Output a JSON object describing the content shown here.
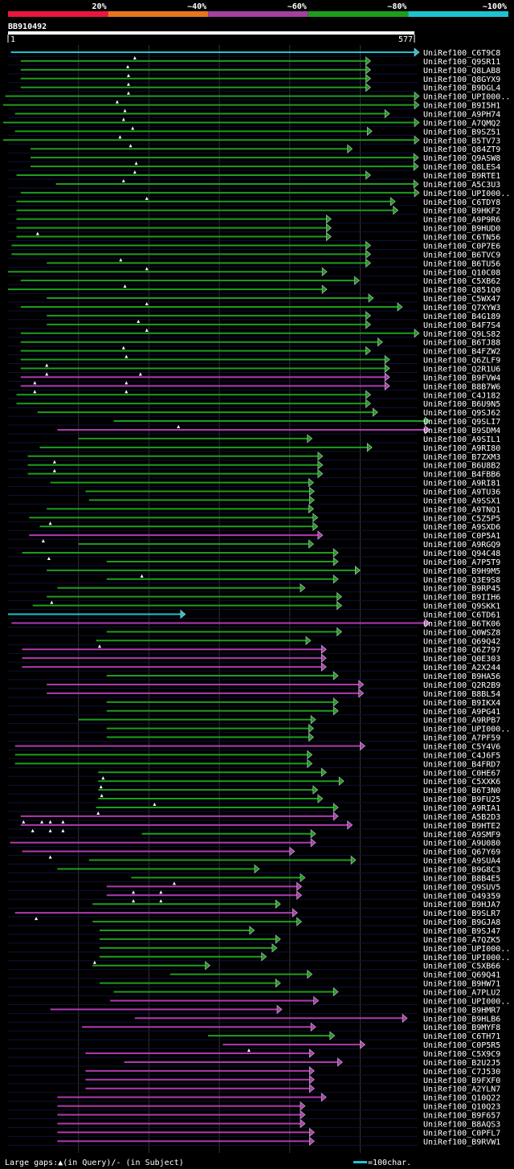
{
  "colors": {
    "bg": "#000000",
    "red": "#e8173c",
    "orange": "#e8741e",
    "purple": "#a340a0",
    "green": "#1d9e1d",
    "cyan": "#1ec3d0",
    "magenta": "#b03ab0",
    "guide": "#333333",
    "row_guide": "#10103a",
    "query": "#ffffff"
  },
  "chart_data": {
    "type": "alignment-overview",
    "title": "BB910492",
    "query_length": 577,
    "axis": {
      "start_label": "1",
      "end_label": "577"
    },
    "identity_legend": [
      {
        "label": "20%",
        "color": "#e8173c"
      },
      {
        "label": "~40%",
        "color": "#e8741e"
      },
      {
        "label": "~60%",
        "color": "#a340a0"
      },
      {
        "label": "~80%",
        "color": "#1d9e1d"
      },
      {
        "label": "~100%",
        "color": "#1ec3d0"
      }
    ],
    "footer": {
      "gap_legend": "Large gaps:▲(in Query)/- (in Subject)",
      "scale_legend": "=100char."
    },
    "hits": [
      {
        "name": "UniRef100_C6T9C8",
        "s": 4,
        "e": 577,
        "c": "cyan",
        "t": [
          180
        ]
      },
      {
        "name": "UniRef100_Q9SR11",
        "s": 18,
        "e": 508,
        "c": "green",
        "t": [
          170
        ]
      },
      {
        "name": "UniRef100_Q8LAB8",
        "s": 18,
        "e": 508,
        "c": "green",
        "t": [
          171
        ]
      },
      {
        "name": "UniRef100_Q8GYX9",
        "s": 18,
        "e": 508,
        "c": "green",
        "t": [
          171
        ]
      },
      {
        "name": "UniRef100_B9DGL4",
        "s": 18,
        "e": 508,
        "c": "green",
        "t": [
          171
        ]
      },
      {
        "name": "UniRef100_UPI000..",
        "s": -4,
        "e": 577,
        "c": "green",
        "t": [
          155
        ]
      },
      {
        "name": "UniRef100_B9I5H1",
        "s": -7,
        "e": 577,
        "c": "green",
        "t": [
          166
        ]
      },
      {
        "name": "UniRef100_A9PH74",
        "s": 10,
        "e": 535,
        "c": "green",
        "t": [
          164
        ]
      },
      {
        "name": "UniRef100_A7QMQ2",
        "s": -7,
        "e": 577,
        "c": "green",
        "t": [
          177
        ]
      },
      {
        "name": "UniRef100_B9SZ51",
        "s": 10,
        "e": 510,
        "c": "green",
        "t": [
          159
        ]
      },
      {
        "name": "UniRef100_B5TV73",
        "s": -7,
        "e": 577,
        "c": "green",
        "t": [
          174
        ]
      },
      {
        "name": "UniRef100_Q84ZT9",
        "s": 32,
        "e": 482,
        "c": "green",
        "t": []
      },
      {
        "name": "UniRef100_Q9ASW8",
        "s": 32,
        "e": 576,
        "c": "green",
        "t": [
          182
        ]
      },
      {
        "name": "UniRef100_Q8LES4",
        "s": 32,
        "e": 576,
        "c": "green",
        "t": [
          180
        ]
      },
      {
        "name": "UniRef100_B9RTE1",
        "s": 12,
        "e": 508,
        "c": "green",
        "t": [
          164
        ]
      },
      {
        "name": "UniRef100_A5C3U3",
        "s": 68,
        "e": 576,
        "c": "green",
        "t": []
      },
      {
        "name": "UniRef100_UPI000..",
        "s": 18,
        "e": 577,
        "c": "green",
        "t": [
          197
        ]
      },
      {
        "name": "UniRef100_C6TDY8",
        "s": 12,
        "e": 543,
        "c": "green",
        "t": []
      },
      {
        "name": "UniRef100_B9HKF2",
        "s": 12,
        "e": 547,
        "c": "green",
        "t": []
      },
      {
        "name": "UniRef100_A9P9R6",
        "s": 12,
        "e": 452,
        "c": "green",
        "t": []
      },
      {
        "name": "UniRef100_B9HUD0",
        "s": 12,
        "e": 452,
        "c": "green",
        "t": [
          42
        ]
      },
      {
        "name": "UniRef100_C6TN56",
        "s": 12,
        "e": 452,
        "c": "green",
        "t": []
      },
      {
        "name": "UniRef100_C0P7E6",
        "s": 5,
        "e": 508,
        "c": "green",
        "t": []
      },
      {
        "name": "UniRef100_B6TVC9",
        "s": 5,
        "e": 508,
        "c": "green",
        "t": [
          160
        ]
      },
      {
        "name": "UniRef100_B6TU56",
        "s": 55,
        "e": 508,
        "c": "green",
        "t": [
          197
        ]
      },
      {
        "name": "UniRef100_Q10C08",
        "s": 0,
        "e": 446,
        "c": "green",
        "t": []
      },
      {
        "name": "UniRef100_C5XB62",
        "s": 18,
        "e": 492,
        "c": "green",
        "t": [
          166
        ]
      },
      {
        "name": "UniRef100_Q851Q0",
        "s": 0,
        "e": 446,
        "c": "green",
        "t": []
      },
      {
        "name": "UniRef100_C5WX47",
        "s": 55,
        "e": 512,
        "c": "green",
        "t": [
          197
        ]
      },
      {
        "name": "UniRef100_Q7XYW3",
        "s": 18,
        "e": 553,
        "c": "green",
        "t": []
      },
      {
        "name": "UniRef100_B4G189",
        "s": 55,
        "e": 508,
        "c": "green",
        "t": [
          185
        ]
      },
      {
        "name": "UniRef100_B4F7S4",
        "s": 55,
        "e": 508,
        "c": "green",
        "t": [
          197
        ]
      },
      {
        "name": "UniRef100_Q9LS82",
        "s": 18,
        "e": 577,
        "c": "green",
        "t": []
      },
      {
        "name": "UniRef100_B6TJ88",
        "s": 18,
        "e": 525,
        "c": "green",
        "t": [
          164
        ]
      },
      {
        "name": "UniRef100_B4FZW2",
        "s": 18,
        "e": 508,
        "c": "green",
        "t": [
          168
        ]
      },
      {
        "name": "UniRef100_Q6ZLF9",
        "s": 18,
        "e": 535,
        "c": "green",
        "t": [
          55
        ]
      },
      {
        "name": "UniRef100_Q2R1U6",
        "s": 18,
        "e": 535,
        "c": "green",
        "t": [
          55,
          188
        ]
      },
      {
        "name": "UniRef100_B9FVW4",
        "s": 18,
        "e": 535,
        "c": "magenta",
        "t": [
          38,
          168
        ]
      },
      {
        "name": "UniRef100_B8B7W6",
        "s": 18,
        "e": 535,
        "c": "magenta",
        "t": [
          38,
          168
        ]
      },
      {
        "name": "UniRef100_C4J182",
        "s": 12,
        "e": 508,
        "c": "green",
        "t": []
      },
      {
        "name": "UniRef100_B6U9N5",
        "s": 12,
        "e": 508,
        "c": "green",
        "t": []
      },
      {
        "name": "UniRef100_Q9SJ62",
        "s": 42,
        "e": 518,
        "c": "green",
        "t": []
      },
      {
        "name": "UniRef100_Q9SLI7",
        "s": 150,
        "e": 592,
        "c": "green",
        "t": [
          242
        ]
      },
      {
        "name": "UniRef100_B9SDM4",
        "s": 70,
        "e": 592,
        "c": "magenta",
        "t": []
      },
      {
        "name": "UniRef100_A9SIL1",
        "s": 100,
        "e": 425,
        "c": "green",
        "t": []
      },
      {
        "name": "UniRef100_A9RI80",
        "s": 45,
        "e": 510,
        "c": "green",
        "t": []
      },
      {
        "name": "UniRef100_B7ZXM3",
        "s": 28,
        "e": 440,
        "c": "green",
        "t": [
          66
        ]
      },
      {
        "name": "UniRef100_B6U8B2",
        "s": 28,
        "e": 440,
        "c": "green",
        "t": [
          66
        ]
      },
      {
        "name": "UniRef100_B4FBB6",
        "s": 28,
        "e": 440,
        "c": "green",
        "t": []
      },
      {
        "name": "UniRef100_A9RI81",
        "s": 60,
        "e": 427,
        "c": "green",
        "t": []
      },
      {
        "name": "UniRef100_A9TU36",
        "s": 110,
        "e": 428,
        "c": "green",
        "t": []
      },
      {
        "name": "UniRef100_A9SSX1",
        "s": 115,
        "e": 428,
        "c": "green",
        "t": []
      },
      {
        "name": "UniRef100_A9TNQ1",
        "s": 55,
        "e": 427,
        "c": "green",
        "t": []
      },
      {
        "name": "UniRef100_C5Z5P5",
        "s": 30,
        "e": 433,
        "c": "green",
        "t": [
          60
        ]
      },
      {
        "name": "UniRef100_A9SXD6",
        "s": 45,
        "e": 433,
        "c": "green",
        "t": []
      },
      {
        "name": "UniRef100_C0P5A1",
        "s": 30,
        "e": 440,
        "c": "magenta",
        "t": [
          50
        ]
      },
      {
        "name": "UniRef100_A9RGQ9",
        "s": 100,
        "e": 427,
        "c": "green",
        "t": []
      },
      {
        "name": "UniRef100_Q94C48",
        "s": 20,
        "e": 462,
        "c": "green",
        "t": [
          58
        ]
      },
      {
        "name": "UniRef100_A7P5T9",
        "s": 140,
        "e": 462,
        "c": "green",
        "t": []
      },
      {
        "name": "UniRef100_B9H9M5",
        "s": 55,
        "e": 493,
        "c": "green",
        "t": [
          190
        ]
      },
      {
        "name": "UniRef100_Q3E9S8",
        "s": 140,
        "e": 462,
        "c": "green",
        "t": []
      },
      {
        "name": "UniRef100_B9RP45",
        "s": 70,
        "e": 415,
        "c": "green",
        "t": []
      },
      {
        "name": "UniRef100_B9IIH6",
        "s": 55,
        "e": 467,
        "c": "green",
        "t": [
          62
        ]
      },
      {
        "name": "UniRef100_Q9SKK1",
        "s": 35,
        "e": 467,
        "c": "green",
        "t": []
      },
      {
        "name": "UniRef100_C6TD61",
        "s": 0,
        "e": 245,
        "c": "cyan",
        "t": []
      },
      {
        "name": "UniRef100_B6TK06",
        "s": 5,
        "e": 592,
        "c": "magenta",
        "t": []
      },
      {
        "name": "UniRef100_Q0WSZ8",
        "s": 140,
        "e": 467,
        "c": "green",
        "t": []
      },
      {
        "name": "UniRef100_Q69Q42",
        "s": 125,
        "e": 423,
        "c": "green",
        "t": [
          130
        ]
      },
      {
        "name": "UniRef100_Q6Z797",
        "s": 20,
        "e": 445,
        "c": "magenta",
        "t": []
      },
      {
        "name": "UniRef100_Q0E303",
        "s": 20,
        "e": 445,
        "c": "magenta",
        "t": []
      },
      {
        "name": "UniRef100_A2X244",
        "s": 20,
        "e": 445,
        "c": "magenta",
        "t": []
      },
      {
        "name": "UniRef100_B9HA56",
        "s": 140,
        "e": 462,
        "c": "green",
        "t": []
      },
      {
        "name": "UniRef100_Q2R2B9",
        "s": 55,
        "e": 498,
        "c": "magenta",
        "t": []
      },
      {
        "name": "UniRef100_B8BL54",
        "s": 55,
        "e": 498,
        "c": "magenta",
        "t": []
      },
      {
        "name": "UniRef100_B9IKX4",
        "s": 140,
        "e": 462,
        "c": "green",
        "t": []
      },
      {
        "name": "UniRef100_A9PG41",
        "s": 140,
        "e": 462,
        "c": "green",
        "t": []
      },
      {
        "name": "UniRef100_A9RPB7",
        "s": 100,
        "e": 430,
        "c": "green",
        "t": []
      },
      {
        "name": "UniRef100_UPI000..",
        "s": 140,
        "e": 427,
        "c": "green",
        "t": []
      },
      {
        "name": "UniRef100_A7PF59",
        "s": 140,
        "e": 427,
        "c": "green",
        "t": []
      },
      {
        "name": "UniRef100_C5Y4V6",
        "s": 10,
        "e": 500,
        "c": "magenta",
        "t": []
      },
      {
        "name": "UniRef100_C4J6F5",
        "s": 10,
        "e": 425,
        "c": "green",
        "t": []
      },
      {
        "name": "UniRef100_B4FRD7",
        "s": 10,
        "e": 425,
        "c": "green",
        "t": []
      },
      {
        "name": "UniRef100_C0HE67",
        "s": 128,
        "e": 445,
        "c": "green",
        "t": [
          135
        ]
      },
      {
        "name": "UniRef100_C5XXK6",
        "s": 128,
        "e": 470,
        "c": "green",
        "t": [
          132
        ]
      },
      {
        "name": "UniRef100_B6T3N0",
        "s": 128,
        "e": 433,
        "c": "green",
        "t": [
          133
        ]
      },
      {
        "name": "UniRef100_B9FU25",
        "s": 128,
        "e": 440,
        "c": "green",
        "t": [
          208
        ]
      },
      {
        "name": "UniRef100_A9RIA1",
        "s": 125,
        "e": 462,
        "c": "green",
        "t": [
          128
        ]
      },
      {
        "name": "UniRef100_A5B2D3",
        "s": 18,
        "e": 462,
        "c": "magenta",
        "t": [
          22,
          48,
          60,
          78
        ]
      },
      {
        "name": "UniRef100_B9HTE2",
        "s": 18,
        "e": 482,
        "c": "magenta",
        "t": [
          35,
          60,
          78
        ]
      },
      {
        "name": "UniRef100_A9SMF9",
        "s": 190,
        "e": 430,
        "c": "green",
        "t": []
      },
      {
        "name": "UniRef100_A9U080",
        "s": 3,
        "e": 430,
        "c": "magenta",
        "t": []
      },
      {
        "name": "UniRef100_Q67Y69",
        "s": 20,
        "e": 400,
        "c": "magenta",
        "t": [
          60
        ]
      },
      {
        "name": "UniRef100_A9SUA4",
        "s": 115,
        "e": 487,
        "c": "green",
        "t": []
      },
      {
        "name": "UniRef100_B9G8C3",
        "s": 70,
        "e": 350,
        "c": "green",
        "t": []
      },
      {
        "name": "UniRef100_B8B4E5",
        "s": 175,
        "e": 415,
        "c": "green",
        "t": [
          236
        ]
      },
      {
        "name": "UniRef100_Q9SUV5",
        "s": 140,
        "e": 410,
        "c": "magenta",
        "t": [
          178,
          217
        ]
      },
      {
        "name": "UniRef100_O49359",
        "s": 140,
        "e": 410,
        "c": "magenta",
        "t": [
          178,
          217
        ]
      },
      {
        "name": "UniRef100_B9HJA7",
        "s": 120,
        "e": 380,
        "c": "green",
        "t": []
      },
      {
        "name": "UniRef100_B9SLR7",
        "s": 10,
        "e": 404,
        "c": "magenta",
        "t": [
          40
        ]
      },
      {
        "name": "UniRef100_B9GJA8",
        "s": 120,
        "e": 410,
        "c": "green",
        "t": []
      },
      {
        "name": "UniRef100_B9SJ47",
        "s": 130,
        "e": 343,
        "c": "green",
        "t": []
      },
      {
        "name": "UniRef100_A7QZK5",
        "s": 130,
        "e": 380,
        "c": "green",
        "t": []
      },
      {
        "name": "UniRef100_UPI000..",
        "s": 130,
        "e": 375,
        "c": "green",
        "t": []
      },
      {
        "name": "UniRef100_UPI000..",
        "s": 130,
        "e": 360,
        "c": "green",
        "t": [
          123
        ]
      },
      {
        "name": "UniRef100_C5XB66",
        "s": 120,
        "e": 280,
        "c": "green",
        "t": []
      },
      {
        "name": "UniRef100_Q69Q41",
        "s": 230,
        "e": 425,
        "c": "green",
        "t": []
      },
      {
        "name": "UniRef100_B9HW71",
        "s": 130,
        "e": 380,
        "c": "green",
        "t": []
      },
      {
        "name": "UniRef100_A7PLU2",
        "s": 150,
        "e": 462,
        "c": "green",
        "t": []
      },
      {
        "name": "UniRef100_UPI000..",
        "s": 145,
        "e": 434,
        "c": "magenta",
        "t": []
      },
      {
        "name": "UniRef100_B9HMR7",
        "s": 60,
        "e": 382,
        "c": "magenta",
        "t": []
      },
      {
        "name": "UniRef100_B9HLB6",
        "s": 180,
        "e": 560,
        "c": "magenta",
        "t": []
      },
      {
        "name": "UniRef100_B9MYF8",
        "s": 105,
        "e": 430,
        "c": "magenta",
        "t": []
      },
      {
        "name": "UniRef100_C6TH71",
        "s": 284,
        "e": 457,
        "c": "green",
        "t": []
      },
      {
        "name": "UniRef100_C0P5R5",
        "s": 305,
        "e": 500,
        "c": "magenta",
        "t": [
          342
        ]
      },
      {
        "name": "UniRef100_C5X9C9",
        "s": 110,
        "e": 428,
        "c": "magenta",
        "t": []
      },
      {
        "name": "UniRef100_B2U2J5",
        "s": 165,
        "e": 468,
        "c": "magenta",
        "t": []
      },
      {
        "name": "UniRef100_C7J530",
        "s": 110,
        "e": 428,
        "c": "magenta",
        "t": []
      },
      {
        "name": "UniRef100_B9FXF0",
        "s": 110,
        "e": 428,
        "c": "magenta",
        "t": []
      },
      {
        "name": "UniRef100_A2YLN7",
        "s": 110,
        "e": 428,
        "c": "magenta",
        "t": []
      },
      {
        "name": "UniRef100_Q10Q22",
        "s": 70,
        "e": 445,
        "c": "magenta",
        "t": []
      },
      {
        "name": "UniRef100_Q10Q23",
        "s": 70,
        "e": 415,
        "c": "magenta",
        "t": []
      },
      {
        "name": "UniRef100_B9F657",
        "s": 70,
        "e": 415,
        "c": "magenta",
        "t": []
      },
      {
        "name": "UniRef100_B8AQS3",
        "s": 70,
        "e": 415,
        "c": "magenta",
        "t": []
      },
      {
        "name": "UniRef100_C0PFL7",
        "s": 70,
        "e": 428,
        "c": "magenta",
        "t": []
      },
      {
        "name": "UniRef100_B9RVW1",
        "s": 70,
        "e": 428,
        "c": "magenta",
        "t": []
      }
    ]
  }
}
